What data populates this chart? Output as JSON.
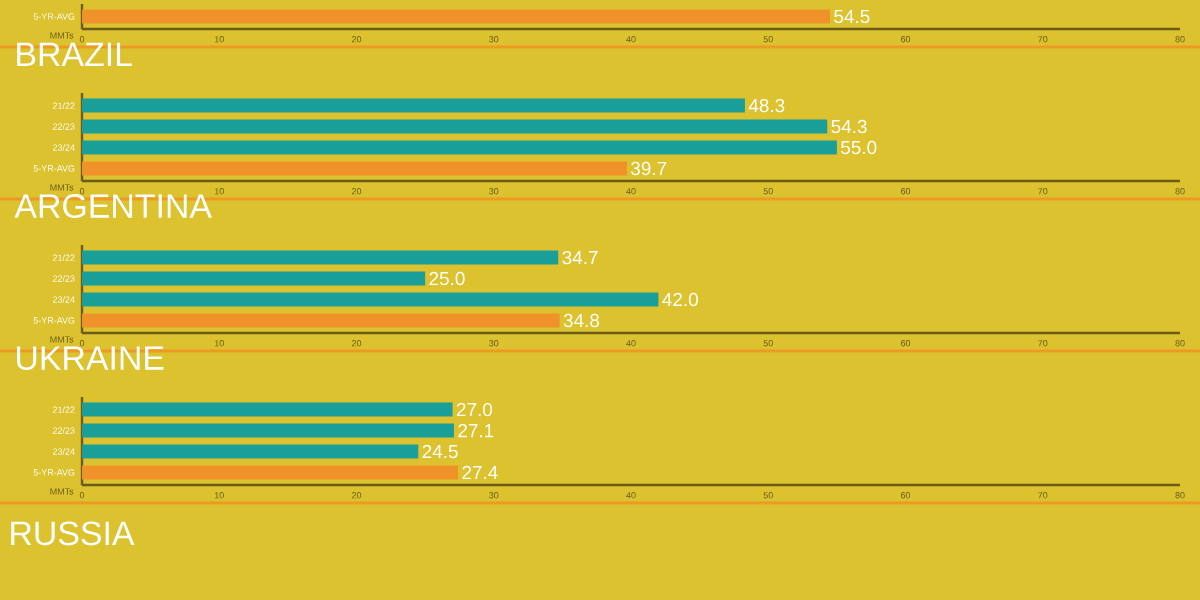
{
  "chart_data": [
    {
      "type": "bar",
      "orientation": "horizontal",
      "categories": [
        "5-YR-AVG"
      ],
      "values": [
        54.5
      ],
      "value_labels": [
        "54.5"
      ],
      "colors": [
        "#f0922a"
      ],
      "xlabel": "MMTs",
      "xlim": [
        0,
        80
      ],
      "xticks": [
        0,
        10,
        20,
        30,
        40,
        50,
        60,
        70,
        80
      ]
    },
    {
      "type": "bar",
      "orientation": "horizontal",
      "title": "BRAZIL",
      "categories": [
        "21/22",
        "22/23",
        "23/24",
        "5-YR-AVG"
      ],
      "values": [
        48.3,
        54.3,
        55.0,
        39.7
      ],
      "value_labels": [
        "48.3",
        "54.3",
        "55.0",
        "39.7"
      ],
      "colors": [
        "#1a9e9a",
        "#1a9e9a",
        "#1a9e9a",
        "#f0922a"
      ],
      "xlabel": "MMTs",
      "xlim": [
        0,
        80
      ],
      "xticks": [
        0,
        10,
        20,
        30,
        40,
        50,
        60,
        70,
        80
      ]
    },
    {
      "type": "bar",
      "orientation": "horizontal",
      "title": "ARGENTINA",
      "categories": [
        "21/22",
        "22/23",
        "23/24",
        "5-YR-AVG"
      ],
      "values": [
        34.7,
        25.0,
        42.0,
        34.8
      ],
      "value_labels": [
        "34.7",
        "25.0",
        "42.0",
        "34.8"
      ],
      "colors": [
        "#1a9e9a",
        "#1a9e9a",
        "#1a9e9a",
        "#f0922a"
      ],
      "xlabel": "MMTs",
      "xlim": [
        0,
        80
      ],
      "xticks": [
        0,
        10,
        20,
        30,
        40,
        50,
        60,
        70,
        80
      ]
    },
    {
      "type": "bar",
      "orientation": "horizontal",
      "title": "UKRAINE",
      "categories": [
        "21/22",
        "22/23",
        "23/24",
        "5-YR-AVG"
      ],
      "values": [
        27.0,
        27.1,
        24.5,
        27.4
      ],
      "value_labels": [
        "27.0",
        "27.1",
        "24.5",
        "27.4"
      ],
      "colors": [
        "#1a9e9a",
        "#1a9e9a",
        "#1a9e9a",
        "#f0922a"
      ],
      "xlabel": "MMTs",
      "xlim": [
        0,
        80
      ],
      "xticks": [
        0,
        10,
        20,
        30,
        40,
        50,
        60,
        70,
        80
      ]
    },
    {
      "type": "other",
      "title": "RUSSIA"
    }
  ]
}
